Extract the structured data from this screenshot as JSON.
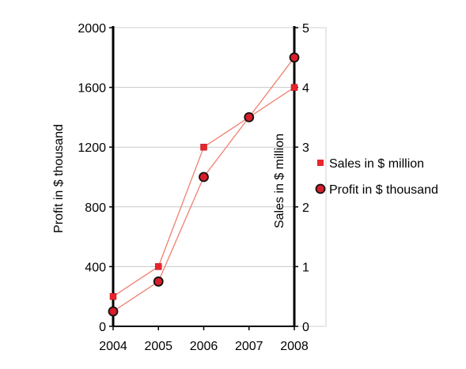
{
  "chart_data": {
    "type": "line",
    "title": "",
    "x": [
      "2004",
      "2005",
      "2006",
      "2007",
      "2008"
    ],
    "y_left": {
      "label": "Profit in $ thousand",
      "range": [
        0,
        2000
      ],
      "ticks": [
        "0",
        "400",
        "800",
        "1200",
        "1600",
        "2000"
      ]
    },
    "y_right": {
      "label": "Sales in $ million",
      "range": [
        0,
        5
      ],
      "ticks": [
        "0",
        "1",
        "2",
        "3",
        "4",
        "5"
      ]
    },
    "series": [
      {
        "name": "Sales in $ million",
        "axis": "right",
        "marker": "square",
        "values": [
          0.5,
          1.0,
          3.0,
          3.5,
          4.0
        ]
      },
      {
        "name": "Profit in $ thousand",
        "axis": "left",
        "marker": "circle",
        "values": [
          100,
          300,
          1000,
          1400,
          1800
        ]
      }
    ],
    "grid": "horizontal",
    "legend_position": "right",
    "colors": {
      "line": "#f08070",
      "square_marker": "#e8242c",
      "circle_marker_fill": "#d81e2a",
      "circle_marker_edge": "#111111",
      "grid": "#c8c8c8",
      "axis": "#000000"
    }
  }
}
